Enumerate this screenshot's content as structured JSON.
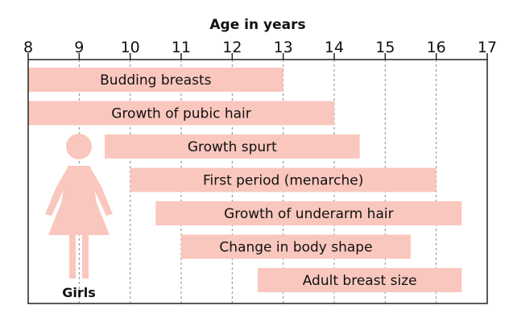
{
  "chart_data": {
    "type": "bar",
    "orientation": "horizontal",
    "xlabel": "Age in years",
    "xlim": [
      8,
      17
    ],
    "x_ticks": [
      8,
      9,
      10,
      11,
      12,
      13,
      14,
      15,
      16,
      17
    ],
    "grid": "vertical dashed",
    "bar_color": "#f9c7bd",
    "figure_label": "Girls",
    "bars": [
      {
        "label": "Budding breasts",
        "start": 8,
        "end": 13
      },
      {
        "label": "Growth of pubic hair",
        "start": 8,
        "end": 14
      },
      {
        "label": "Growth spurt",
        "start": 9.5,
        "end": 14.5
      },
      {
        "label": "First period (menarche)",
        "start": 10,
        "end": 16
      },
      {
        "label": "Growth of underarm hair",
        "start": 10.5,
        "end": 16.5
      },
      {
        "label": "Change in body shape",
        "start": 11,
        "end": 15.5
      },
      {
        "label": "Adult breast size",
        "start": 12.5,
        "end": 16.5
      }
    ]
  }
}
